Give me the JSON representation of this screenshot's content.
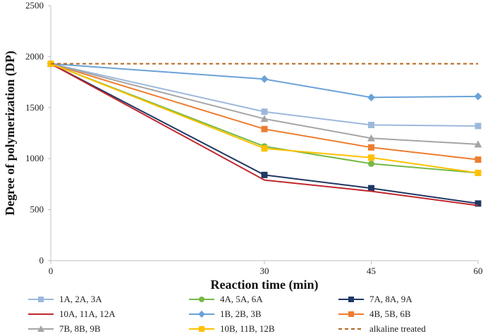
{
  "chart_data": {
    "type": "line",
    "title": "",
    "xlabel": "Reaction time (min)",
    "ylabel": "Degree of polymerization (DP)",
    "x": [
      0,
      30,
      45,
      60
    ],
    "xlim": [
      0,
      60
    ],
    "ylim": [
      0,
      2500
    ],
    "x_ticks": [
      "0",
      "30",
      "45",
      "60"
    ],
    "y_ticks": [
      "0",
      "500",
      "1000",
      "1500",
      "2000",
      "2500"
    ],
    "grid": false,
    "legend_position": "bottom",
    "series": [
      {
        "name": "1A, 2A, 3A",
        "values": [
          1930,
          1460,
          1330,
          1320
        ],
        "color": "#9db8dc",
        "marker": "square",
        "line": "solid"
      },
      {
        "name": "4A, 5A, 6A",
        "values": [
          1930,
          1120,
          950,
          860
        ],
        "color": "#76b947",
        "marker": "circle",
        "line": "solid"
      },
      {
        "name": "7A, 8A, 9A",
        "values": [
          1930,
          840,
          710,
          560
        ],
        "color": "#1f3864",
        "marker": "square",
        "line": "solid"
      },
      {
        "name": "10A, 11A, 12A",
        "values": [
          1930,
          790,
          680,
          540
        ],
        "color": "#c0272d",
        "marker": "none",
        "line": "solid"
      },
      {
        "name": "1B, 2B, 3B",
        "values": [
          1930,
          1780,
          1600,
          1610
        ],
        "color": "#6aa2d8",
        "marker": "diamond",
        "line": "solid"
      },
      {
        "name": "4B, 5B, 6B",
        "values": [
          1930,
          1290,
          1110,
          990
        ],
        "color": "#ed7d31",
        "marker": "square",
        "line": "solid"
      },
      {
        "name": "7B, 8B, 9B",
        "values": [
          1930,
          1390,
          1200,
          1140
        ],
        "color": "#a5a5a5",
        "marker": "triangle",
        "line": "solid"
      },
      {
        "name": "10B, 11B, 12B",
        "values": [
          1930,
          1100,
          1010,
          860
        ],
        "color": "#ffc000",
        "marker": "square",
        "line": "solid"
      },
      {
        "name": "alkaline treated",
        "values": [
          1930,
          1930,
          1930,
          1930
        ],
        "color": "#b5651d",
        "marker": "none",
        "line": "dashed"
      }
    ]
  }
}
